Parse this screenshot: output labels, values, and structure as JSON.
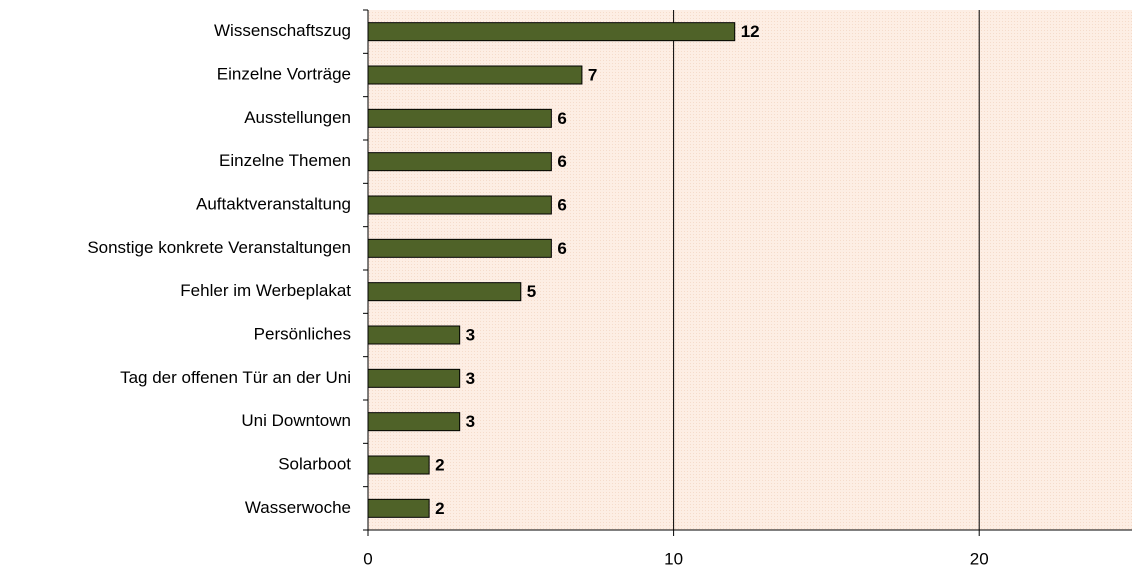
{
  "chart_data": {
    "type": "bar",
    "orientation": "horizontal",
    "categories": [
      "Wissenschaftszug",
      "Einzelne Vorträge",
      "Ausstellungen",
      "Einzelne Themen",
      "Auftaktveranstaltung",
      "Sonstige konkrete Veranstaltungen",
      "Fehler im Werbeplakat",
      "Persönliches",
      "Tag der offenen Tür an der Uni",
      "Uni Downtown",
      "Solarboot",
      "Wasserwoche"
    ],
    "values": [
      12,
      7,
      6,
      6,
      6,
      6,
      5,
      3,
      3,
      3,
      2,
      2
    ],
    "color": "#4f6228",
    "xlim": [
      0,
      25
    ],
    "xticks": [
      0,
      10,
      20
    ],
    "grid": true
  }
}
